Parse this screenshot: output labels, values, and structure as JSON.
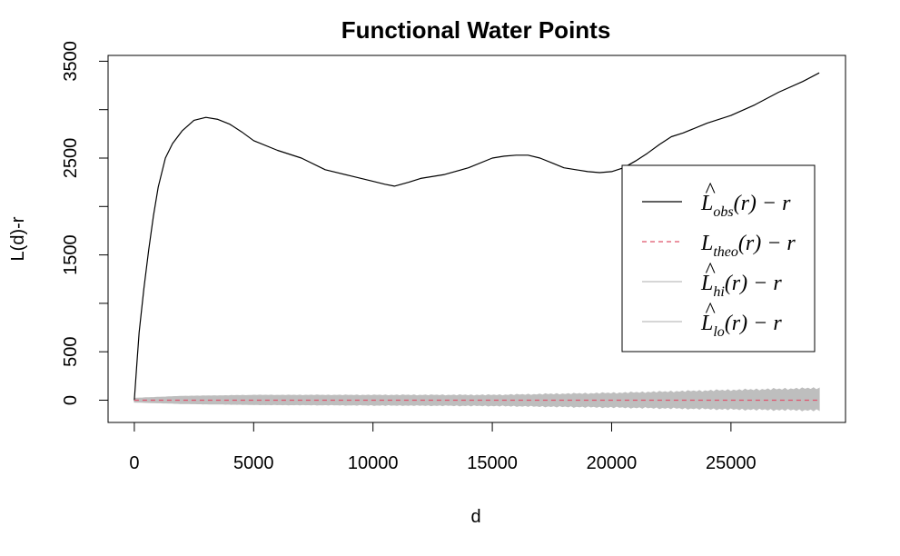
{
  "chart_data": {
    "type": "line",
    "title": "Functional Water Points",
    "xlabel": "d",
    "ylabel": "L(d)-r",
    "xlim": [
      -1100,
      29800
    ],
    "ylim": [
      -230,
      3560
    ],
    "x_ticks": [
      0,
      5000,
      10000,
      15000,
      20000,
      25000
    ],
    "x_tick_labels": [
      "0",
      "5000",
      "10000",
      "15000",
      "20000",
      "25000"
    ],
    "y_ticks": [
      0,
      500,
      1500,
      2500,
      3500
    ],
    "y_tick_labels": [
      "0",
      "500",
      "1500",
      "2500",
      "3500"
    ],
    "y_minor_ticks": [
      1000,
      2000,
      3000
    ],
    "grid": false,
    "legend_position": "right",
    "legend": [
      {
        "key": "obs",
        "main": "L",
        "hat": true,
        "sub": "obs",
        "suffix": "(r) − r",
        "color": "#000000",
        "dash": "solid"
      },
      {
        "key": "theo",
        "main": "L",
        "hat": false,
        "sub": "theo",
        "suffix": "(r) − r",
        "color": "#DF536B",
        "dash": "dashed"
      },
      {
        "key": "hi",
        "main": "L",
        "hat": true,
        "sub": "hi",
        "suffix": "(r) − r",
        "color": "#BEBEBE",
        "dash": "solid"
      },
      {
        "key": "lo",
        "main": "L",
        "hat": true,
        "sub": "lo",
        "suffix": "(r) − r",
        "color": "#BEBEBE",
        "dash": "solid"
      }
    ],
    "envelope": {
      "name": "envelope",
      "color": "#BEBEBE",
      "x": [
        0,
        2000,
        5000,
        10000,
        15000,
        20000,
        25000,
        28700
      ],
      "hi": [
        20,
        40,
        50,
        50,
        50,
        70,
        100,
        120
      ],
      "lo": [
        -20,
        -35,
        -45,
        -50,
        -55,
        -70,
        -90,
        -100
      ]
    },
    "series": [
      {
        "key": "obs",
        "color": "#000000",
        "dash": "solid",
        "x": [
          0,
          100,
          200,
          400,
          600,
          800,
          1000,
          1300,
          1600,
          2000,
          2500,
          3000,
          3500,
          4000,
          4500,
          5000,
          6000,
          7000,
          8000,
          9000,
          10000,
          10500,
          10900,
          11500,
          12000,
          13000,
          14000,
          15000,
          15500,
          16000,
          16500,
          17000,
          17500,
          18000,
          18500,
          19000,
          19500,
          20000,
          20500,
          21000,
          21500,
          22000,
          22500,
          23000,
          24000,
          25000,
          26000,
          27000,
          28000,
          28700
        ],
        "y": [
          0,
          350,
          700,
          1150,
          1550,
          1900,
          2200,
          2500,
          2650,
          2780,
          2890,
          2920,
          2900,
          2850,
          2770,
          2680,
          2580,
          2500,
          2380,
          2320,
          2260,
          2230,
          2210,
          2250,
          2290,
          2330,
          2400,
          2500,
          2520,
          2530,
          2530,
          2500,
          2450,
          2400,
          2380,
          2360,
          2350,
          2360,
          2400,
          2470,
          2550,
          2640,
          2720,
          2760,
          2860,
          2940,
          3050,
          3180,
          3290,
          3380
        ]
      },
      {
        "key": "theo",
        "color": "#DF536B",
        "dash": "dashed",
        "x": [
          0,
          28700
        ],
        "y": [
          0,
          0
        ]
      }
    ]
  }
}
